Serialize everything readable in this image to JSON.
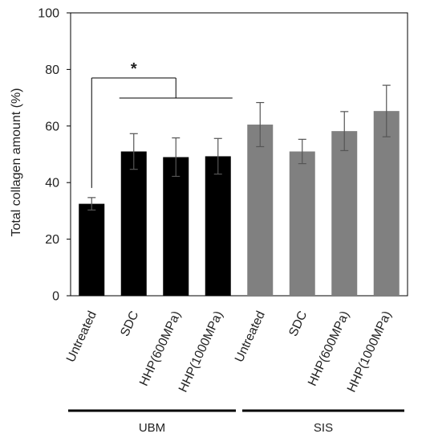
{
  "chart_data": {
    "type": "bar",
    "title": "",
    "xlabel": "",
    "ylabel": "Total collagen amount (%)",
    "ylim": [
      0,
      100
    ],
    "yticks": [
      0,
      20,
      40,
      60,
      80,
      100
    ],
    "grid": false,
    "legend": "none",
    "categories": [
      "Untreated",
      "SDC",
      "HHP(600MPa)",
      "HHP(1000MPa)",
      "Untreated",
      "SDC",
      "HHP(600MPa)",
      "HHP(1000MPa)"
    ],
    "values": [
      32.5,
      51.0,
      49.0,
      49.3,
      60.5,
      51.0,
      58.2,
      65.3
    ],
    "errors": [
      2.2,
      6.3,
      6.8,
      6.3,
      7.8,
      4.3,
      6.9,
      9.1
    ],
    "bar_colors": [
      "#000000",
      "#000000",
      "#000000",
      "#000000",
      "#808080",
      "#808080",
      "#808080",
      "#808080"
    ],
    "groups": [
      {
        "label": "UBM",
        "start": 0,
        "end": 3
      },
      {
        "label": "SIS",
        "start": 4,
        "end": 7
      }
    ],
    "significance": {
      "label": "*",
      "from": 0,
      "to": [
        1,
        3
      ]
    }
  }
}
